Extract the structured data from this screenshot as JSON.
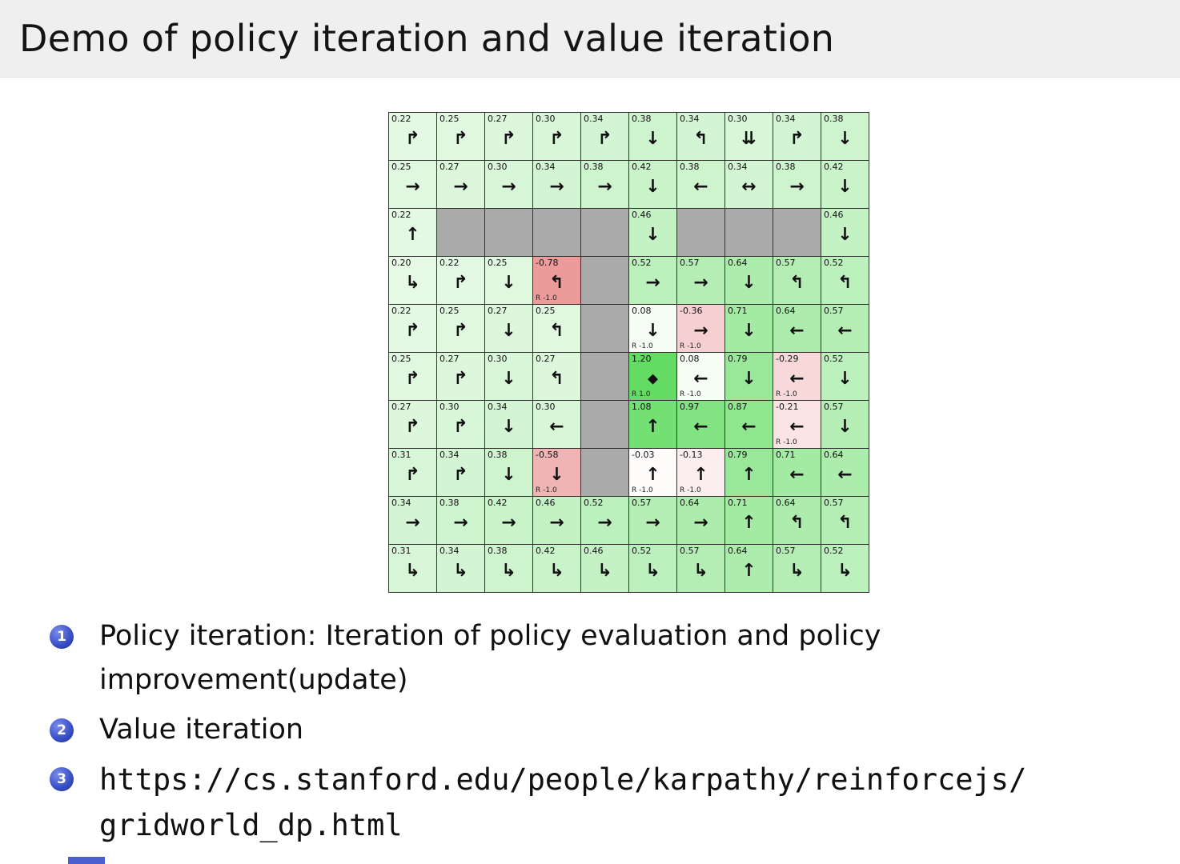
{
  "slide": {
    "title": "Demo of policy iteration and value iteration",
    "bullets": [
      {
        "number": "1",
        "mono": false,
        "lines": [
          "Policy iteration: Iteration of policy evaluation and policy",
          "improvement(update)"
        ]
      },
      {
        "number": "2",
        "mono": false,
        "lines": [
          "Value iteration"
        ]
      },
      {
        "number": "3",
        "mono": true,
        "lines": [
          "https://cs.stanford.edu/people/karpathy/reinforcejs/",
          "gridworld_dp.html"
        ]
      }
    ]
  },
  "colors": {
    "title_bar_bg": "#efefef",
    "slide_bg": "#ffffff",
    "badge_blue": "#3c52c8",
    "badge_blue_dark": "#1b2f8f",
    "wall_gray": "#aaaaaa",
    "grid_line": "#333333",
    "positive_max_green": "#64dc64",
    "negative_max_red": "#e67d7d",
    "footer_accent": "#4a5fd0",
    "value_scale_max": 1.2,
    "value_scale_min": -1.0
  },
  "gridworld": {
    "rows": [
      [
        {
          "v": "0.22",
          "a": "↱"
        },
        {
          "v": "0.25",
          "a": "↱"
        },
        {
          "v": "0.27",
          "a": "↱"
        },
        {
          "v": "0.30",
          "a": "↱"
        },
        {
          "v": "0.34",
          "a": "↱"
        },
        {
          "v": "0.38",
          "a": "↓"
        },
        {
          "v": "0.34",
          "a": "↰"
        },
        {
          "v": "0.30",
          "a": "⇊"
        },
        {
          "v": "0.34",
          "a": "↱"
        },
        {
          "v": "0.38",
          "a": "↓"
        }
      ],
      [
        {
          "v": "0.25",
          "a": "→"
        },
        {
          "v": "0.27",
          "a": "→"
        },
        {
          "v": "0.30",
          "a": "→"
        },
        {
          "v": "0.34",
          "a": "→"
        },
        {
          "v": "0.38",
          "a": "→"
        },
        {
          "v": "0.42",
          "a": "↓"
        },
        {
          "v": "0.38",
          "a": "←"
        },
        {
          "v": "0.34",
          "a": "↔"
        },
        {
          "v": "0.38",
          "a": "→"
        },
        {
          "v": "0.42",
          "a": "↓"
        }
      ],
      [
        {
          "v": "0.22",
          "a": "↑"
        },
        {
          "wall": true
        },
        {
          "wall": true
        },
        {
          "wall": true
        },
        {
          "wall": true
        },
        {
          "v": "0.46",
          "a": "↓"
        },
        {
          "wall": true
        },
        {
          "wall": true
        },
        {
          "wall": true
        },
        {
          "v": "0.46",
          "a": "↓"
        }
      ],
      [
        {
          "v": "0.20",
          "a": "↳"
        },
        {
          "v": "0.22",
          "a": "↱"
        },
        {
          "v": "0.25",
          "a": "↓"
        },
        {
          "v": "-0.78",
          "a": "↰",
          "r": "R -1.0"
        },
        {
          "wall": true
        },
        {
          "v": "0.52",
          "a": "→"
        },
        {
          "v": "0.57",
          "a": "→"
        },
        {
          "v": "0.64",
          "a": "↓"
        },
        {
          "v": "0.57",
          "a": "↰"
        },
        {
          "v": "0.52",
          "a": "↰"
        }
      ],
      [
        {
          "v": "0.22",
          "a": "↱"
        },
        {
          "v": "0.25",
          "a": "↱"
        },
        {
          "v": "0.27",
          "a": "↓"
        },
        {
          "v": "0.25",
          "a": "↰"
        },
        {
          "wall": true
        },
        {
          "v": "0.08",
          "a": "↓",
          "r": "R -1.0"
        },
        {
          "v": "-0.36",
          "a": "→",
          "r": "R -1.0"
        },
        {
          "v": "0.71",
          "a": "↓"
        },
        {
          "v": "0.64",
          "a": "←"
        },
        {
          "v": "0.57",
          "a": "←"
        }
      ],
      [
        {
          "v": "0.25",
          "a": "↱"
        },
        {
          "v": "0.27",
          "a": "↱"
        },
        {
          "v": "0.30",
          "a": "↓"
        },
        {
          "v": "0.27",
          "a": "↰"
        },
        {
          "wall": true
        },
        {
          "v": "1.20",
          "a": "◆",
          "r": "R 1.0",
          "goal": true
        },
        {
          "v": "0.08",
          "a": "←",
          "r": "R -1.0"
        },
        {
          "v": "0.79",
          "a": "↓"
        },
        {
          "v": "-0.29",
          "a": "←",
          "r": "R -1.0"
        },
        {
          "v": "0.52",
          "a": "↓"
        }
      ],
      [
        {
          "v": "0.27",
          "a": "↱"
        },
        {
          "v": "0.30",
          "a": "↱"
        },
        {
          "v": "0.34",
          "a": "↓"
        },
        {
          "v": "0.30",
          "a": "←"
        },
        {
          "wall": true
        },
        {
          "v": "1.08",
          "a": "↑"
        },
        {
          "v": "0.97",
          "a": "←"
        },
        {
          "v": "0.87",
          "a": "←"
        },
        {
          "v": "-0.21",
          "a": "←",
          "r": "R -1.0"
        },
        {
          "v": "0.57",
          "a": "↓"
        }
      ],
      [
        {
          "v": "0.31",
          "a": "↱"
        },
        {
          "v": "0.34",
          "a": "↱"
        },
        {
          "v": "0.38",
          "a": "↓"
        },
        {
          "v": "-0.58",
          "a": "↓",
          "r": "R -1.0"
        },
        {
          "wall": true
        },
        {
          "v": "-0.03",
          "a": "↑",
          "r": "R -1.0"
        },
        {
          "v": "-0.13",
          "a": "↑",
          "r": "R -1.0"
        },
        {
          "v": "0.79",
          "a": "↑"
        },
        {
          "v": "0.71",
          "a": "←"
        },
        {
          "v": "0.64",
          "a": "←"
        }
      ],
      [
        {
          "v": "0.34",
          "a": "→"
        },
        {
          "v": "0.38",
          "a": "→"
        },
        {
          "v": "0.42",
          "a": "→"
        },
        {
          "v": "0.46",
          "a": "→"
        },
        {
          "v": "0.52",
          "a": "→"
        },
        {
          "v": "0.57",
          "a": "→"
        },
        {
          "v": "0.64",
          "a": "→"
        },
        {
          "v": "0.71",
          "a": "↑"
        },
        {
          "v": "0.64",
          "a": "↰"
        },
        {
          "v": "0.57",
          "a": "↰"
        }
      ],
      [
        {
          "v": "0.31",
          "a": "↳"
        },
        {
          "v": "0.34",
          "a": "↳"
        },
        {
          "v": "0.38",
          "a": "↳"
        },
        {
          "v": "0.42",
          "a": "↳"
        },
        {
          "v": "0.46",
          "a": "↳"
        },
        {
          "v": "0.52",
          "a": "↳"
        },
        {
          "v": "0.57",
          "a": "↳"
        },
        {
          "v": "0.64",
          "a": "↑"
        },
        {
          "v": "0.57",
          "a": "↳"
        },
        {
          "v": "0.52",
          "a": "↳"
        }
      ]
    ]
  }
}
